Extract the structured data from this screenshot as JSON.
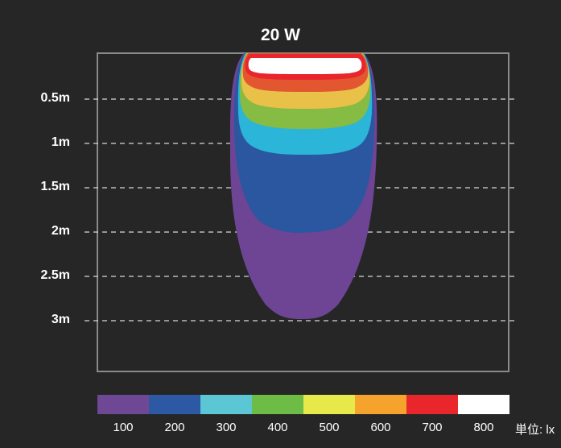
{
  "title": "20 W",
  "depth_labels": [
    "0.5m",
    "1m",
    "1.5m",
    "2m",
    "2.5m",
    "3m"
  ],
  "legend": {
    "values": [
      "100",
      "200",
      "300",
      "400",
      "500",
      "600",
      "700",
      "800"
    ],
    "colors": [
      "#6e4795",
      "#2d58a3",
      "#5cc7d4",
      "#6dbc45",
      "#e7e84a",
      "#f6a32e",
      "#e8262b",
      "#ffffff"
    ],
    "unit": "単位: lx"
  },
  "contour_colors": {
    "100": "#6d4594",
    "200": "#2b56a0",
    "300": "#2ab5d9",
    "400": "#86bb44",
    "500": "#e9c148",
    "600": "#e25630",
    "700": "#e8262b",
    "800": "#ffffff"
  }
}
